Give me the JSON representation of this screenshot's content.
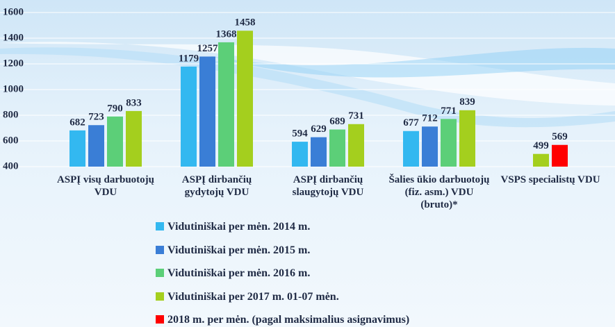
{
  "chart_data": {
    "type": "bar",
    "categories": [
      "ASPĮ visų darbuotojų VDU",
      "ASPĮ dirbančių gydytojų VDU",
      "ASPĮ dirbančių slaugytojų VDU",
      "Šalies ūkio darbuotojų (fiz. asm.) VDU (bruto)*",
      "VSPS specialistų VDU"
    ],
    "series": [
      {
        "name": "Vidutiniškai per mėn. 2014 m.",
        "color": "#33b8f0",
        "values": [
          682,
          1179,
          594,
          677,
          null
        ]
      },
      {
        "name": "Vidutiniškai per mėn. 2015 m.",
        "color": "#3a7ed6",
        "values": [
          723,
          1257,
          629,
          712,
          null
        ]
      },
      {
        "name": "Vidutiniškai per mėn. 2016 m.",
        "color": "#5ccf78",
        "values": [
          790,
          1368,
          689,
          771,
          null
        ]
      },
      {
        "name": "Vidutiniškai per 2017 m. 01-07 mėn.",
        "color": "#a4cf1e",
        "values": [
          833,
          1458,
          731,
          839,
          499
        ]
      },
      {
        "name": "2018 m. per mėn. (pagal maksimalius asignavimus)",
        "color": "#ff0000",
        "values": [
          null,
          null,
          null,
          null,
          569
        ]
      }
    ],
    "ylim": [
      400,
      1600
    ],
    "yticks": [
      400,
      600,
      800,
      1000,
      1200,
      1400,
      1600
    ],
    "grid": true
  }
}
